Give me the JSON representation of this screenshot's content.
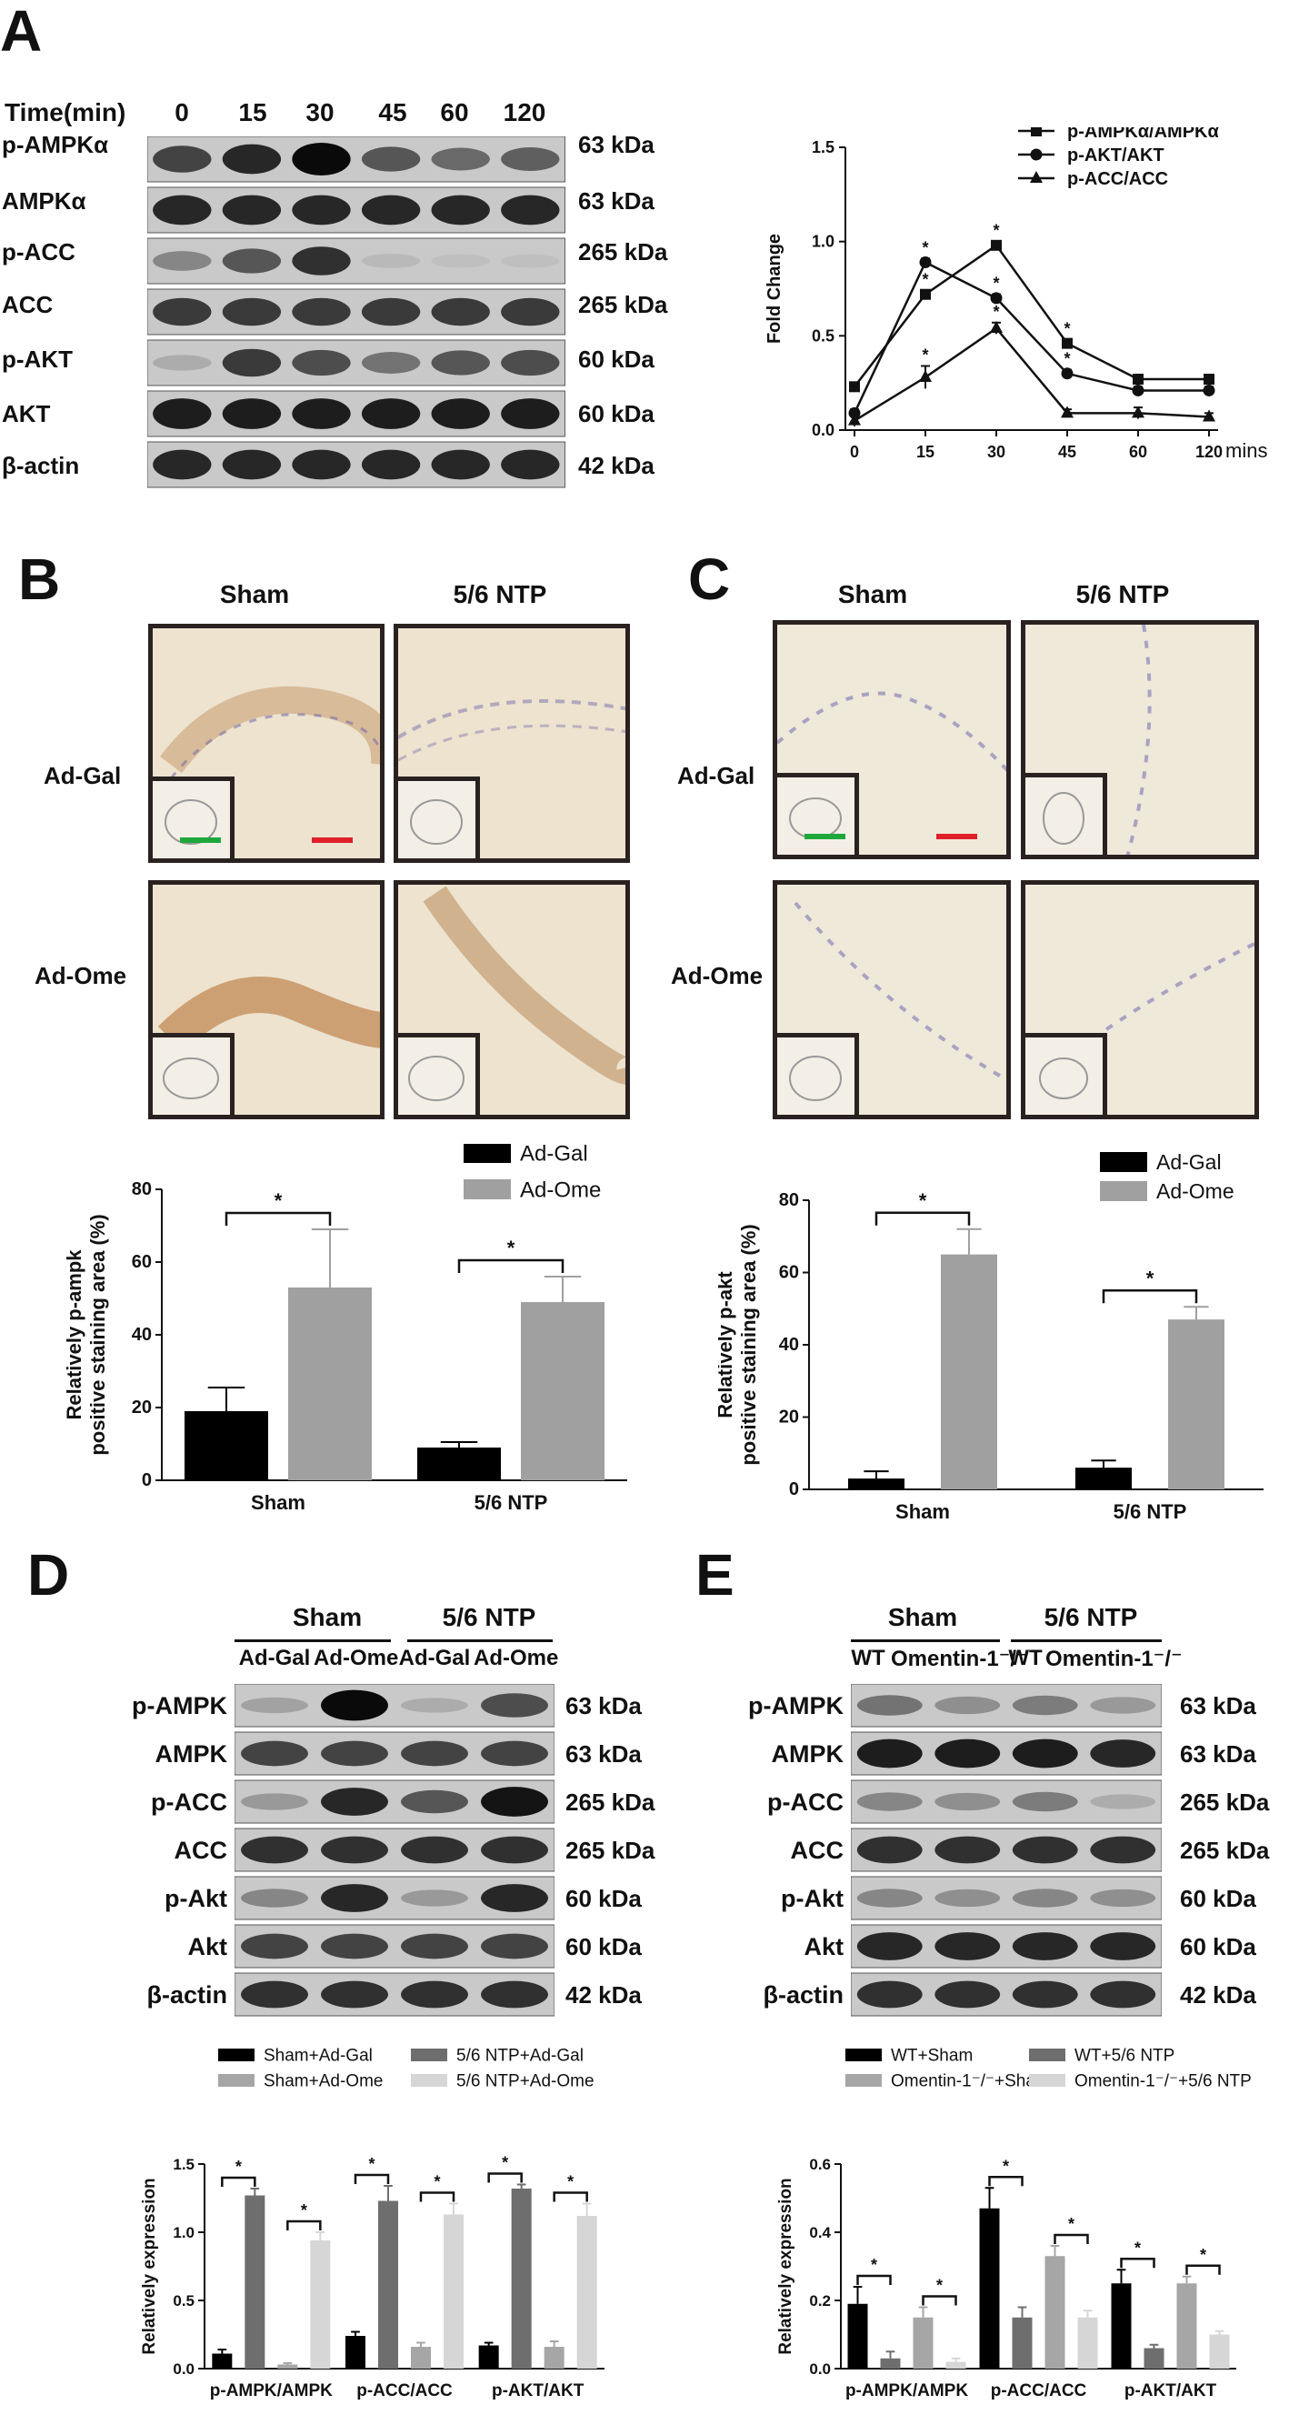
{
  "panels": {
    "a": "A",
    "b": "B",
    "c": "C",
    "d": "D",
    "e": "E"
  },
  "panelA": {
    "time_header": "Time(min)",
    "times": [
      "0",
      "15",
      "30",
      "45",
      "60",
      "120"
    ],
    "rows": [
      {
        "label": "p-AMPKα",
        "kda": "63 kDa"
      },
      {
        "label": "AMPKα",
        "kda": "63 kDa"
      },
      {
        "label": "p-ACC",
        "kda": "265 kDa"
      },
      {
        "label": "ACC",
        "kda": "265 kDa"
      },
      {
        "label": "p-AKT",
        "kda": "60 kDa"
      },
      {
        "label": "AKT",
        "kda": "60 kDa"
      },
      {
        "label": "β-actin",
        "kda": "42 kDa"
      }
    ]
  },
  "panelB": {
    "col_titles": [
      "Sham",
      "5/6 NTP"
    ],
    "row_titles": [
      "Ad-Gal",
      "Ad-Ome"
    ]
  },
  "panelC": {
    "col_titles": [
      "Sham",
      "5/6 NTP"
    ],
    "row_titles": [
      "Ad-Gal",
      "Ad-Ome"
    ]
  },
  "panelD": {
    "group_headers": [
      "Sham",
      "5/6 NTP"
    ],
    "lanes": [
      "Ad-Gal",
      "Ad-Ome",
      "Ad-Gal",
      "Ad-Ome"
    ],
    "rows": [
      {
        "label": "p-AMPK",
        "kda": "63 kDa"
      },
      {
        "label": "AMPK",
        "kda": "63 kDa"
      },
      {
        "label": "p-ACC",
        "kda": "265 kDa"
      },
      {
        "label": "ACC",
        "kda": "265 kDa"
      },
      {
        "label": "p-Akt",
        "kda": "60 kDa"
      },
      {
        "label": "Akt",
        "kda": "60 kDa"
      },
      {
        "label": "β-actin",
        "kda": "42 kDa"
      }
    ]
  },
  "panelE": {
    "group_headers": [
      "Sham",
      "5/6 NTP"
    ],
    "lanes": [
      "WT",
      "Omentin-1⁻/⁻",
      "WT",
      "Omentin-1⁻/⁻"
    ],
    "rows": [
      {
        "label": "p-AMPK",
        "kda": "63 kDa"
      },
      {
        "label": "AMPK",
        "kda": "63 kDa"
      },
      {
        "label": "p-ACC",
        "kda": "265 kDa"
      },
      {
        "label": "ACC",
        "kda": "265 kDa"
      },
      {
        "label": "p-Akt",
        "kda": "60 kDa"
      },
      {
        "label": "Akt",
        "kda": "60 kDa"
      },
      {
        "label": "β-actin",
        "kda": "42 kDa"
      }
    ]
  },
  "chart_data": [
    {
      "id": "A-line",
      "type": "line",
      "x": [
        "0",
        "15",
        "30",
        "45",
        "60",
        "120"
      ],
      "xunit": "mins",
      "ylabel": "Fold Change",
      "ylim": [
        0,
        1.5
      ],
      "yticks": [
        "0.0",
        "0.5",
        "1.0",
        "1.5"
      ],
      "series": [
        {
          "name": "p-AMPKα/AMPKα",
          "marker": "square",
          "values": [
            0.23,
            0.72,
            0.98,
            0.46,
            0.27,
            0.27
          ],
          "errors": [
            0.02,
            0.02,
            0.02,
            0.02,
            0.02,
            0.02
          ],
          "sig": [
            false,
            true,
            true,
            true,
            false,
            false
          ]
        },
        {
          "name": "p-AKT/AKT",
          "marker": "circle",
          "values": [
            0.09,
            0.89,
            0.7,
            0.3,
            0.21,
            0.21
          ],
          "errors": [
            0.02,
            0.02,
            0.02,
            0.02,
            0.02,
            0.02
          ],
          "sig": [
            false,
            true,
            true,
            true,
            false,
            false
          ]
        },
        {
          "name": "p-ACC/ACC",
          "marker": "triangle",
          "values": [
            0.05,
            0.28,
            0.54,
            0.09,
            0.09,
            0.07
          ],
          "errors": [
            0.03,
            0.06,
            0.03,
            0.02,
            0.03,
            0.02
          ],
          "sig": [
            false,
            true,
            true,
            false,
            false,
            false
          ]
        }
      ],
      "legend_position": "top-right"
    },
    {
      "id": "B-bar",
      "type": "bar",
      "categories": [
        "Sham",
        "5/6 NTP"
      ],
      "ylabel": "Relatively p-ampk positive staining area (%)",
      "ylim": [
        0,
        80
      ],
      "yticks": [
        "0",
        "20",
        "40",
        "60",
        "80"
      ],
      "series": [
        {
          "name": "Ad-Gal",
          "color": "#000000",
          "values": [
            19,
            9
          ],
          "errors": [
            6.5,
            1.5
          ]
        },
        {
          "name": "Ad-Ome",
          "color": "#a0a0a0",
          "values": [
            53,
            49
          ],
          "errors": [
            16,
            7
          ]
        }
      ],
      "significance": [
        "*",
        "*"
      ],
      "legend_position": "top-right"
    },
    {
      "id": "C-bar",
      "type": "bar",
      "categories": [
        "Sham",
        "5/6 NTP"
      ],
      "ylabel": "Relatively p-akt positive staining area (%)",
      "ylim": [
        0,
        80
      ],
      "yticks": [
        "0",
        "20",
        "40",
        "60",
        "80"
      ],
      "series": [
        {
          "name": "Ad-Gal",
          "color": "#000000",
          "values": [
            3,
            6
          ],
          "errors": [
            2,
            2
          ]
        },
        {
          "name": "Ad-Ome",
          "color": "#a0a0a0",
          "values": [
            65,
            47
          ],
          "errors": [
            7,
            3.5
          ]
        }
      ],
      "significance": [
        "*",
        "*"
      ],
      "legend_position": "top-right"
    },
    {
      "id": "D-bar",
      "type": "bar",
      "categories": [
        "p-AMPK/AMPK",
        "p-ACC/ACC",
        "p-AKT/AKT"
      ],
      "ylabel": "Relatively expression",
      "ylim": [
        0,
        1.5
      ],
      "yticks": [
        "0.0",
        "0.5",
        "1.0",
        "1.5"
      ],
      "series": [
        {
          "name": "Sham+Ad-Gal",
          "color": "#000000",
          "values": [
            0.11,
            0.24,
            0.17
          ],
          "errors": [
            0.03,
            0.03,
            0.02
          ]
        },
        {
          "name": "5/6 NTP+Ad-Gal",
          "color": "#6e6e6e",
          "values": [
            1.27,
            1.23,
            1.32
          ],
          "errors": [
            0.05,
            0.11,
            0.03
          ]
        },
        {
          "name": "Sham+Ad-Ome",
          "color": "#a6a6a6",
          "values": [
            0.03,
            0.16,
            0.16
          ],
          "errors": [
            0.01,
            0.03,
            0.04
          ]
        },
        {
          "name": "5/6 NTP+Ad-Ome",
          "color": "#d6d6d6",
          "values": [
            0.94,
            1.13,
            1.12
          ],
          "errors": [
            0.06,
            0.08,
            0.09
          ]
        }
      ],
      "legend_position": "top",
      "significance": [
        "*",
        "*",
        "*",
        "*",
        "*",
        "*"
      ]
    },
    {
      "id": "E-bar",
      "type": "bar",
      "categories": [
        "p-AMPK/AMPK",
        "p-ACC/ACC",
        "p-AKT/AKT"
      ],
      "ylabel": "Relatively expression",
      "ylim": [
        0,
        0.6
      ],
      "yticks": [
        "0.0",
        "0.2",
        "0.4",
        "0.6"
      ],
      "series": [
        {
          "name": "WT+Sham",
          "color": "#000000",
          "values": [
            0.19,
            0.47,
            0.25
          ],
          "errors": [
            0.05,
            0.06,
            0.04
          ]
        },
        {
          "name": "WT+5/6 NTP",
          "color": "#6e6e6e",
          "values": [
            0.03,
            0.15,
            0.06
          ],
          "errors": [
            0.02,
            0.03,
            0.01
          ]
        },
        {
          "name": "Omentin-1⁻/⁻+Sham",
          "color": "#a6a6a6",
          "values": [
            0.15,
            0.33,
            0.25
          ],
          "errors": [
            0.03,
            0.03,
            0.02
          ]
        },
        {
          "name": "Omentin-1⁻/⁻+5/6 NTP",
          "color": "#d6d6d6",
          "values": [
            0.02,
            0.15,
            0.1
          ],
          "errors": [
            0.01,
            0.02,
            0.01
          ]
        }
      ],
      "legend_position": "top",
      "significance": [
        "*",
        "*",
        "*",
        "*",
        "*",
        "*"
      ]
    }
  ]
}
